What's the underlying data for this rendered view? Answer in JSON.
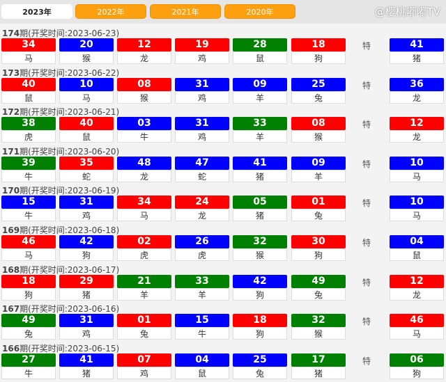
{
  "tabs": [
    "2023年",
    "2022年",
    "2021年",
    "2020年"
  ],
  "special_label": "特",
  "colors": {
    "red": "#ff0000",
    "blue": "#0000ff",
    "green": "#008000",
    "tab": "#ffa010"
  },
  "watermark": "@樱桃嘟嘟TV",
  "draws": [
    {
      "period": "174",
      "title": "期(开奖时间:2023-06-23)",
      "balls": [
        [
          "34",
          "马",
          "red"
        ],
        [
          "20",
          "猴",
          "blue"
        ],
        [
          "12",
          "龙",
          "red"
        ],
        [
          "19",
          "鸡",
          "red"
        ],
        [
          "28",
          "鼠",
          "green"
        ],
        [
          "18",
          "狗",
          "red"
        ]
      ],
      "special": [
        "41",
        "猪",
        "blue"
      ]
    },
    {
      "period": "173",
      "title": "期(开奖时间:2023-06-22)",
      "balls": [
        [
          "40",
          "鼠",
          "red"
        ],
        [
          "10",
          "马",
          "blue"
        ],
        [
          "08",
          "猴",
          "red"
        ],
        [
          "31",
          "鸡",
          "blue"
        ],
        [
          "09",
          "羊",
          "blue"
        ],
        [
          "25",
          "兔",
          "blue"
        ]
      ],
      "special": [
        "36",
        "龙",
        "blue"
      ]
    },
    {
      "period": "172",
      "title": "期(开奖时间:2023-06-21)",
      "balls": [
        [
          "38",
          "虎",
          "green"
        ],
        [
          "40",
          "鼠",
          "red"
        ],
        [
          "03",
          "牛",
          "blue"
        ],
        [
          "31",
          "鸡",
          "blue"
        ],
        [
          "33",
          "羊",
          "green"
        ],
        [
          "08",
          "猴",
          "red"
        ]
      ],
      "special": [
        "12",
        "龙",
        "red"
      ]
    },
    {
      "period": "171",
      "title": "期(开奖时间:2023-06-20)",
      "balls": [
        [
          "39",
          "牛",
          "green"
        ],
        [
          "35",
          "蛇",
          "red"
        ],
        [
          "48",
          "龙",
          "blue"
        ],
        [
          "47",
          "蛇",
          "blue"
        ],
        [
          "41",
          "猪",
          "blue"
        ],
        [
          "09",
          "羊",
          "blue"
        ]
      ],
      "special": [
        "10",
        "马",
        "blue"
      ]
    },
    {
      "period": "170",
      "title": "期(开奖时间:2023-06-19)",
      "balls": [
        [
          "15",
          "牛",
          "blue"
        ],
        [
          "31",
          "鸡",
          "blue"
        ],
        [
          "34",
          "马",
          "red"
        ],
        [
          "24",
          "龙",
          "red"
        ],
        [
          "05",
          "猪",
          "green"
        ],
        [
          "01",
          "兔",
          "red"
        ]
      ],
      "special": [
        "10",
        "马",
        "blue"
      ]
    },
    {
      "period": "169",
      "title": "期(开奖时间:2023-06-18)",
      "balls": [
        [
          "46",
          "马",
          "red"
        ],
        [
          "42",
          "狗",
          "blue"
        ],
        [
          "02",
          "虎",
          "red"
        ],
        [
          "26",
          "虎",
          "blue"
        ],
        [
          "32",
          "猴",
          "green"
        ],
        [
          "30",
          "狗",
          "red"
        ]
      ],
      "special": [
        "04",
        "鼠",
        "blue"
      ]
    },
    {
      "period": "168",
      "title": "期(开奖时间:2023-06-17)",
      "balls": [
        [
          "18",
          "狗",
          "red"
        ],
        [
          "29",
          "猪",
          "red"
        ],
        [
          "21",
          "羊",
          "green"
        ],
        [
          "33",
          "羊",
          "green"
        ],
        [
          "42",
          "狗",
          "blue"
        ],
        [
          "49",
          "兔",
          "green"
        ]
      ],
      "special": [
        "12",
        "龙",
        "red"
      ]
    },
    {
      "period": "167",
      "title": "期(开奖时间:2023-06-16)",
      "balls": [
        [
          "49",
          "兔",
          "green"
        ],
        [
          "31",
          "鸡",
          "blue"
        ],
        [
          "01",
          "兔",
          "red"
        ],
        [
          "15",
          "牛",
          "blue"
        ],
        [
          "18",
          "狗",
          "red"
        ],
        [
          "32",
          "猴",
          "green"
        ]
      ],
      "special": [
        "46",
        "马",
        "red"
      ]
    },
    {
      "period": "166",
      "title": "期(开奖时间:2023-06-15)",
      "balls": [
        [
          "27",
          "牛",
          "green"
        ],
        [
          "41",
          "猪",
          "blue"
        ],
        [
          "07",
          "鸡",
          "red"
        ],
        [
          "04",
          "鼠",
          "blue"
        ],
        [
          "25",
          "兔",
          "blue"
        ],
        [
          "17",
          "猪",
          "green"
        ]
      ],
      "special": [
        "06",
        "狗",
        "green"
      ]
    }
  ]
}
